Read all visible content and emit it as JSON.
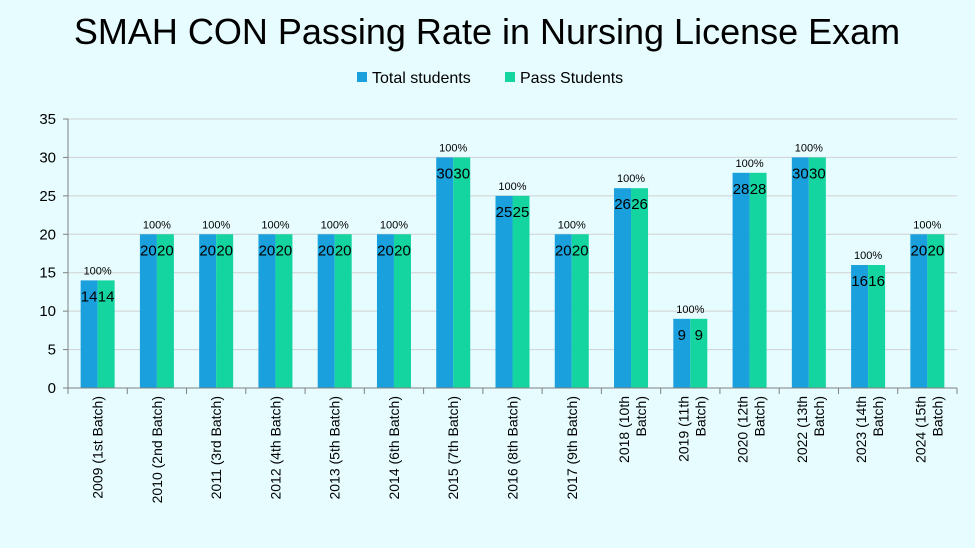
{
  "chart_data": {
    "type": "bar",
    "title": "SMAH CON Passing Rate in Nursing License Exam",
    "xlabel": "",
    "ylabel": "",
    "ylim": [
      0,
      35
    ],
    "yticks": [
      0,
      5,
      10,
      15,
      20,
      25,
      30,
      35
    ],
    "grid": true,
    "legend": "top-center",
    "categories": [
      "2009 (1st Batch)",
      "2010 (2nd Batch)",
      "2011 (3rd Batch)",
      "2012 (4th Batch)",
      "2013 (5th Batch)",
      "2014 (6th Batch)",
      "2015 (7th Batch)",
      "2016 (8th Batch)",
      "2017 (9th Batch)",
      "2018 (10th Batch)",
      "2019 (11th Batch)",
      "2020 (12th Batch)",
      "2022 (13th Batch)",
      "2023 (14th Batch)",
      "2024 (15th Batch)"
    ],
    "series": [
      {
        "name": "Total students",
        "color": "#1aa0dc",
        "values": [
          14,
          20,
          20,
          20,
          20,
          20,
          30,
          25,
          20,
          26,
          9,
          28,
          30,
          16,
          20
        ]
      },
      {
        "name": "Pass Students",
        "color": "#14d4a0",
        "values": [
          14,
          20,
          20,
          20,
          20,
          20,
          30,
          25,
          20,
          26,
          9,
          28,
          30,
          16,
          20
        ]
      }
    ],
    "annotations": [
      "100%",
      "100%",
      "100%",
      "100%",
      "100%",
      "100%",
      "100%",
      "100%",
      "100%",
      "100%",
      "100%",
      "100%",
      "100%",
      "100%",
      "100%"
    ]
  }
}
